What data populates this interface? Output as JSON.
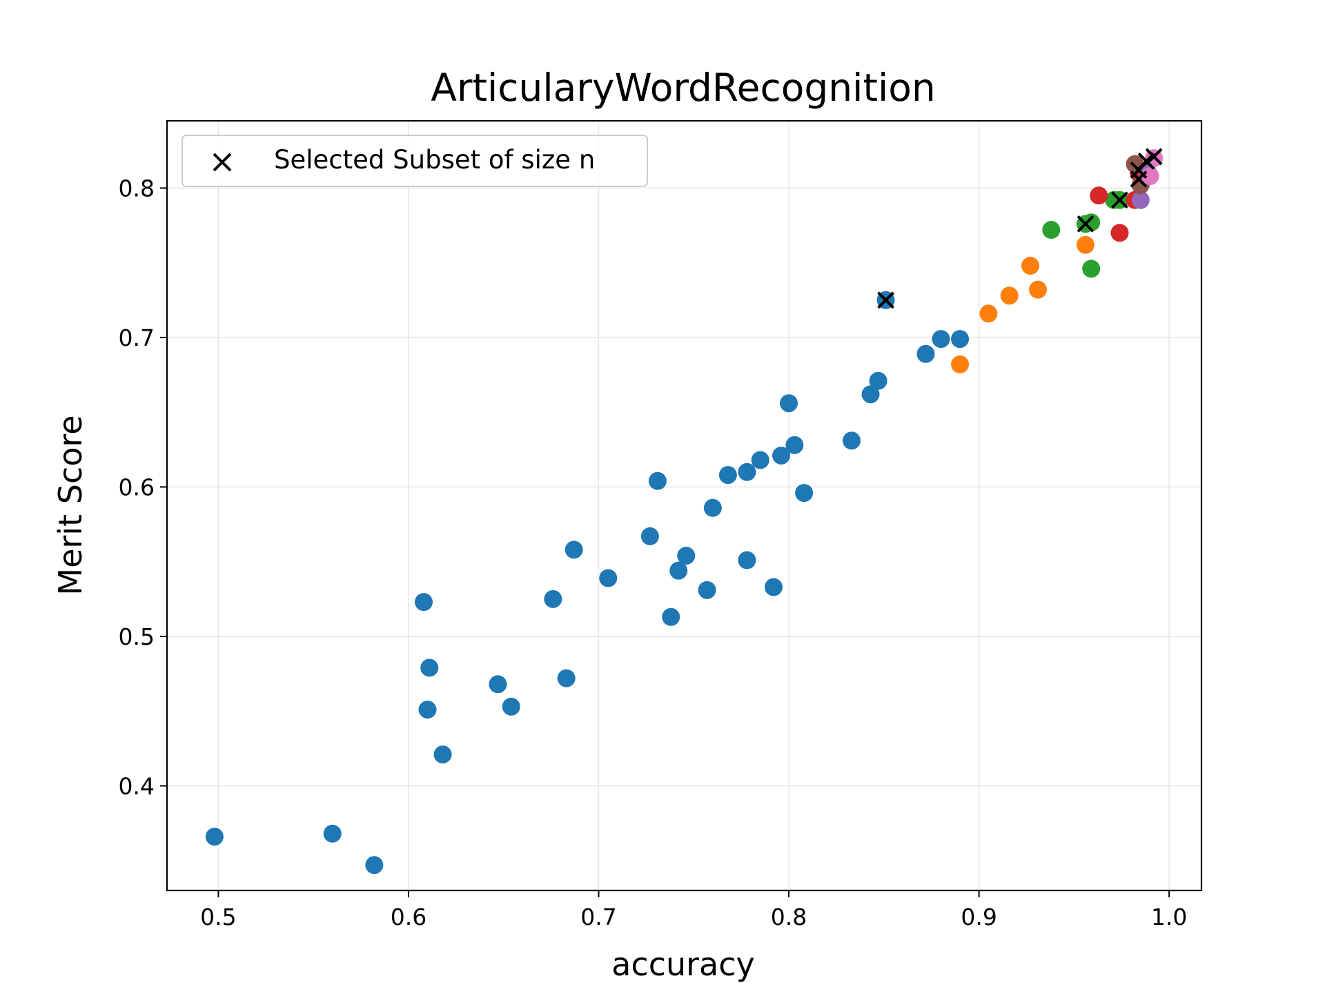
{
  "chart_data": {
    "type": "scatter",
    "title": "ArticularyWordRecognition",
    "xlabel": "accuracy",
    "ylabel": "Merit Score",
    "xlim": [
      0.473,
      1.017
    ],
    "ylim": [
      0.33,
      0.845
    ],
    "xticks": [
      "0.5",
      "0.6",
      "0.7",
      "0.8",
      "0.9",
      "1.0"
    ],
    "yticks": [
      "0.4",
      "0.5",
      "0.6",
      "0.7",
      "0.8"
    ],
    "grid": true,
    "legend": {
      "location": "upper left",
      "entries": [
        "Selected Subset of size n"
      ]
    },
    "series": [
      {
        "color": "#1f77b4",
        "points": [
          [
            0.498,
            0.366
          ],
          [
            0.56,
            0.368
          ],
          [
            0.582,
            0.347
          ],
          [
            0.608,
            0.523
          ],
          [
            0.611,
            0.479
          ],
          [
            0.61,
            0.451
          ],
          [
            0.618,
            0.421
          ],
          [
            0.647,
            0.468
          ],
          [
            0.654,
            0.453
          ],
          [
            0.676,
            0.525
          ],
          [
            0.683,
            0.472
          ],
          [
            0.687,
            0.558
          ],
          [
            0.705,
            0.539
          ],
          [
            0.727,
            0.567
          ],
          [
            0.731,
            0.604
          ],
          [
            0.738,
            0.513
          ],
          [
            0.742,
            0.544
          ],
          [
            0.746,
            0.554
          ],
          [
            0.757,
            0.531
          ],
          [
            0.76,
            0.586
          ],
          [
            0.768,
            0.608
          ],
          [
            0.778,
            0.61
          ],
          [
            0.778,
            0.551
          ],
          [
            0.785,
            0.618
          ],
          [
            0.792,
            0.533
          ],
          [
            0.796,
            0.621
          ],
          [
            0.8,
            0.656
          ],
          [
            0.803,
            0.628
          ],
          [
            0.808,
            0.596
          ],
          [
            0.833,
            0.631
          ],
          [
            0.843,
            0.662
          ],
          [
            0.847,
            0.671
          ],
          [
            0.851,
            0.725
          ],
          [
            0.872,
            0.689
          ],
          [
            0.88,
            0.699
          ],
          [
            0.89,
            0.699
          ]
        ]
      },
      {
        "color": "#ff7f0e",
        "points": [
          [
            0.89,
            0.682
          ],
          [
            0.905,
            0.716
          ],
          [
            0.916,
            0.728
          ],
          [
            0.927,
            0.748
          ],
          [
            0.931,
            0.732
          ],
          [
            0.956,
            0.762
          ]
        ]
      },
      {
        "color": "#2ca02c",
        "points": [
          [
            0.938,
            0.772
          ],
          [
            0.956,
            0.776
          ],
          [
            0.959,
            0.777
          ],
          [
            0.959,
            0.746
          ],
          [
            0.971,
            0.792
          ],
          [
            0.974,
            0.792
          ]
        ]
      },
      {
        "color": "#d62728",
        "points": [
          [
            0.963,
            0.795
          ],
          [
            0.974,
            0.77
          ],
          [
            0.982,
            0.792
          ],
          [
            0.984,
            0.81
          ]
        ]
      },
      {
        "color": "#9467bd",
        "points": [
          [
            0.985,
            0.792
          ],
          [
            0.989,
            0.81
          ]
        ]
      },
      {
        "color": "#8c564b",
        "points": [
          [
            0.982,
            0.816
          ],
          [
            0.985,
            0.802
          ]
        ]
      },
      {
        "color": "#e377c2",
        "points": [
          [
            0.99,
            0.808
          ],
          [
            0.992,
            0.82
          ]
        ]
      }
    ],
    "selected_subset": {
      "name": "Selected Subset of size n",
      "marker": "x",
      "color": "#000000",
      "points": [
        [
          0.851,
          0.725
        ],
        [
          0.956,
          0.776
        ],
        [
          0.974,
          0.792
        ],
        [
          0.984,
          0.806
        ],
        [
          0.984,
          0.812
        ],
        [
          0.988,
          0.818
        ],
        [
          0.992,
          0.821
        ]
      ]
    }
  }
}
